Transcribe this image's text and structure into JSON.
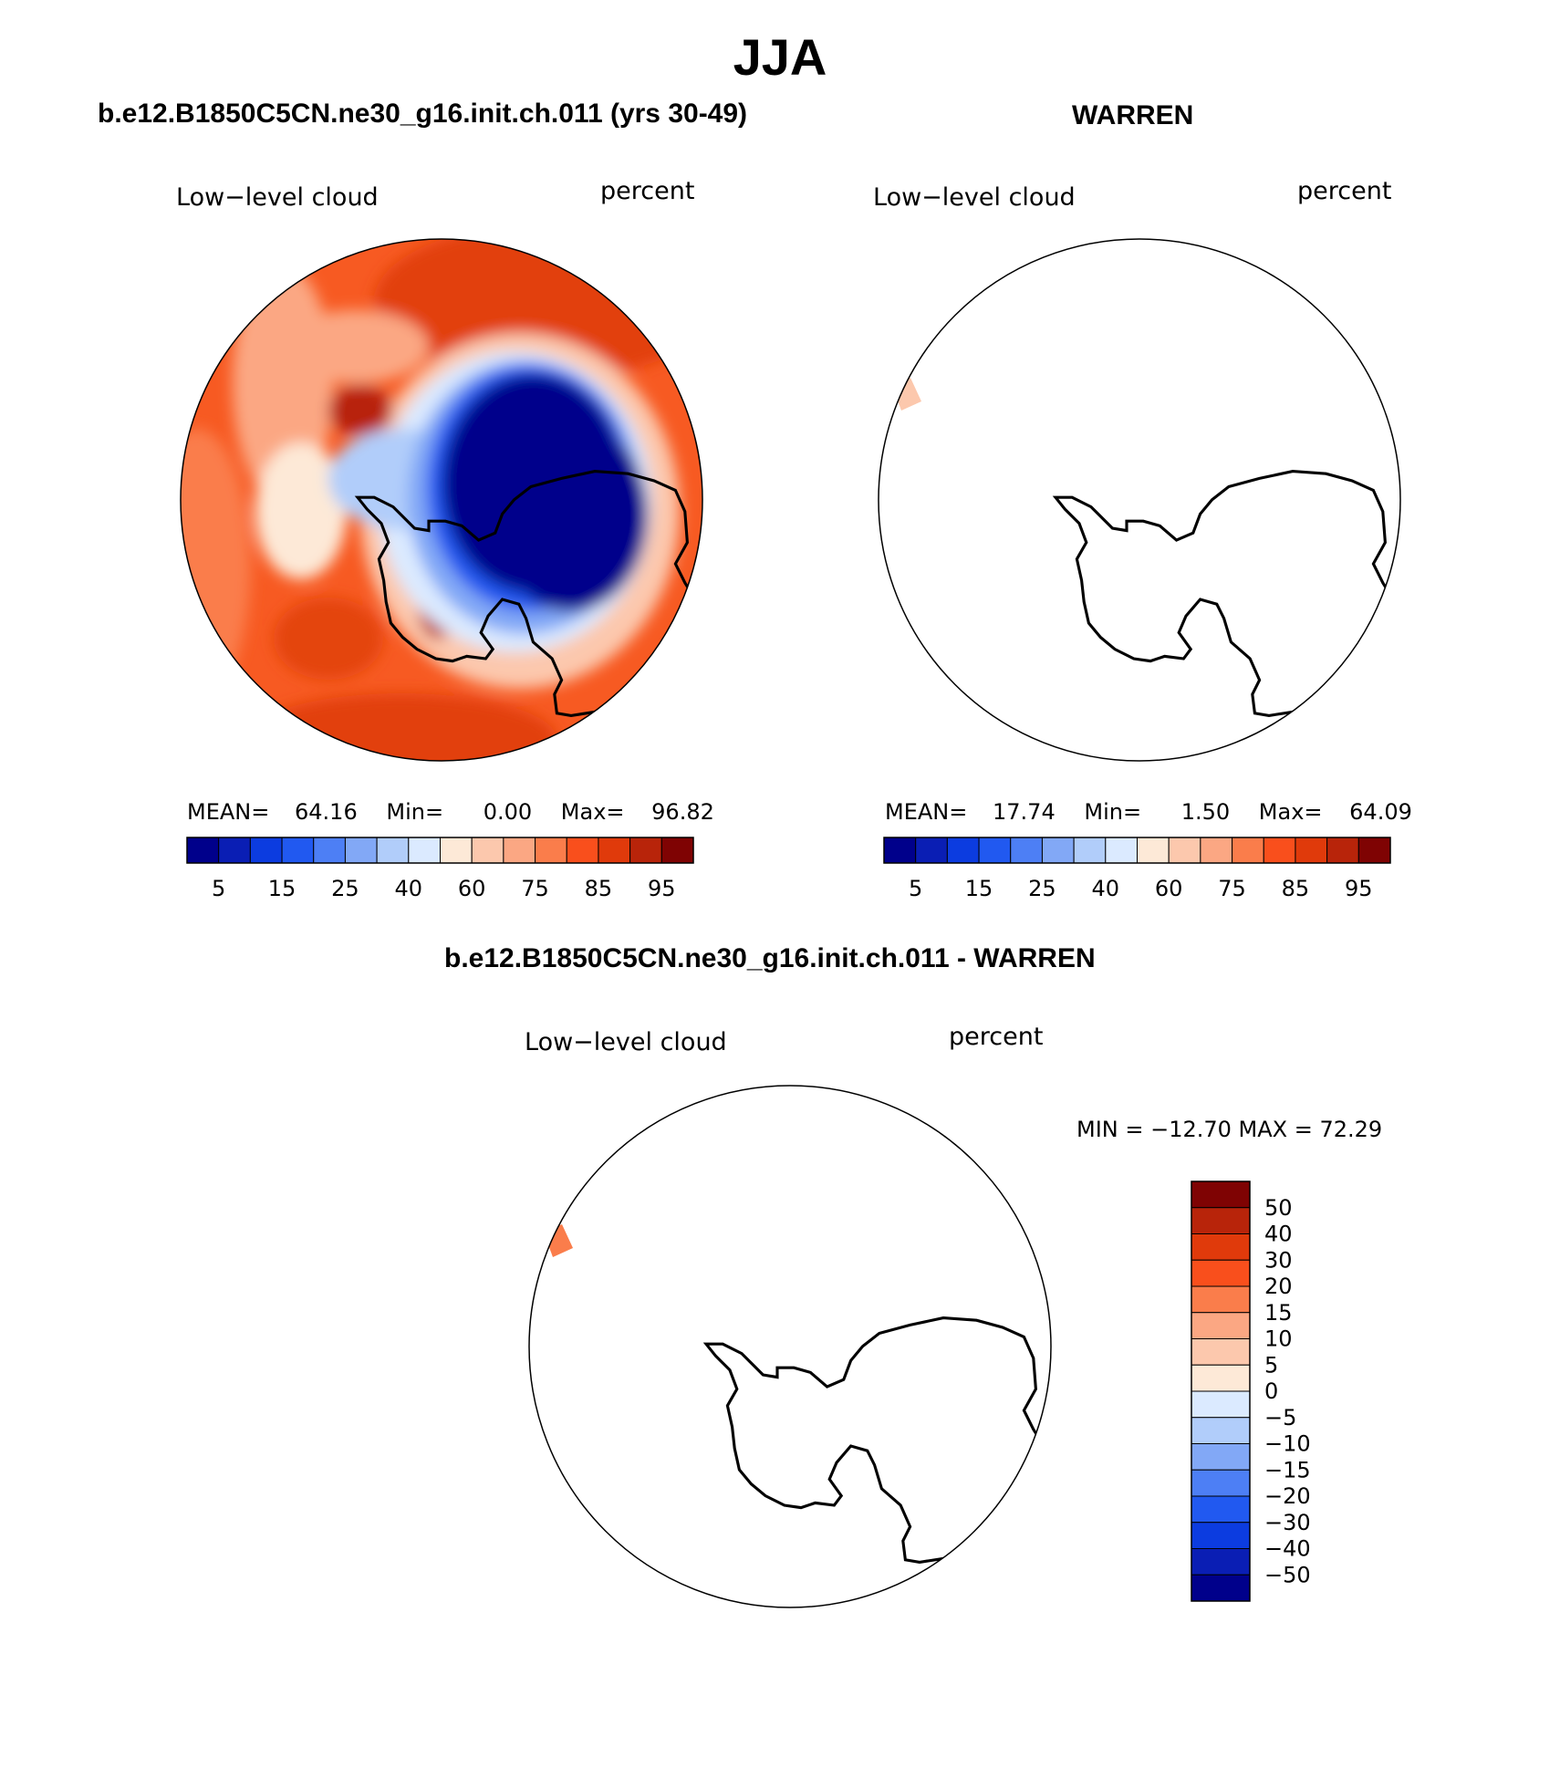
{
  "title": "JJA",
  "colors": {
    "abs_scale": [
      "#00008b",
      "#0a1eb4",
      "#0c3ce0",
      "#2159f0",
      "#4d7ff5",
      "#82a8f6",
      "#b1cdfa",
      "#dbeaff",
      "#fde9d7",
      "#fcc8ad",
      "#fba783",
      "#fa7d4b",
      "#f94f1c",
      "#e03a0b",
      "#b8240a",
      "#7f0303"
    ],
    "diff_scale": [
      "#00008b",
      "#0a1eb4",
      "#0c3ce0",
      "#2159f0",
      "#4d7ff5",
      "#82a8f6",
      "#b1cdfa",
      "#dbeaff",
      "#fde9d7",
      "#fcc8ad",
      "#fba783",
      "#fa7d4b",
      "#f94f1c",
      "#e03a0b",
      "#b8240a",
      "#7f0303"
    ],
    "sea_base": "#f85a20",
    "land": "#000080",
    "outline": "#000000"
  },
  "panels": [
    {
      "id": "model",
      "header": "b.e12.B1850C5CN.ne30_g16.init.ch.011 (yrs 30-49)",
      "variable": "Low−level cloud",
      "units": "percent",
      "mean_label": "MEAN=",
      "mean": "64.16",
      "min_label": "Min=",
      "min": "0.00",
      "max_label": "Max=",
      "max": "96.82"
    },
    {
      "id": "obs",
      "header": "WARREN",
      "variable": "Low−level cloud",
      "units": "percent",
      "mean_label": "MEAN=",
      "mean": "17.74",
      "min_label": "Min=",
      "min": "1.50",
      "max_label": "Max=",
      "max": "64.09"
    },
    {
      "id": "diff",
      "header": "b.e12.B1850C5CN.ne30_g16.init.ch.011 - WARREN",
      "variable": "Low−level cloud",
      "units": "percent",
      "minmax_text": "MIN = −12.70  MAX =   72.29"
    }
  ],
  "colorbar_abs_labels": [
    "5",
    "15",
    "25",
    "40",
    "60",
    "75",
    "85",
    "95"
  ],
  "colorbar_diff_labels": [
    "50",
    "40",
    "30",
    "20",
    "15",
    "10",
    "5",
    "0",
    "−5",
    "−10",
    "−15",
    "−20",
    "−30",
    "−40",
    "−50"
  ]
}
